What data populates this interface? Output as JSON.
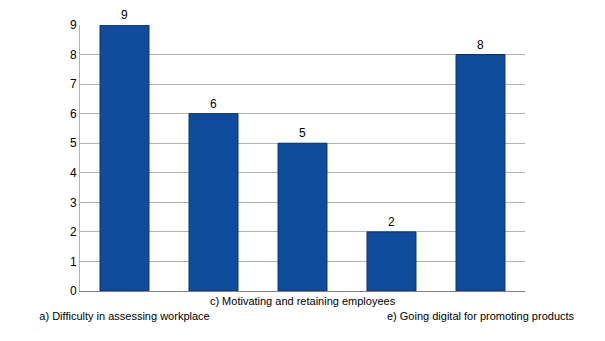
{
  "chart_data": {
    "type": "bar",
    "categories": [
      "a) Difficulty in assessing workplace",
      null,
      "c) Motivating and retaining employees",
      null,
      "e) Going digital for promoting products"
    ],
    "values": [
      9,
      6,
      5,
      2,
      8
    ],
    "color": "#0f4c9e",
    "ylim": [
      0,
      9
    ],
    "yticks": [
      0,
      1,
      2,
      3,
      4,
      5,
      6,
      7,
      8,
      9
    ],
    "grid": true,
    "data_labels": true
  }
}
